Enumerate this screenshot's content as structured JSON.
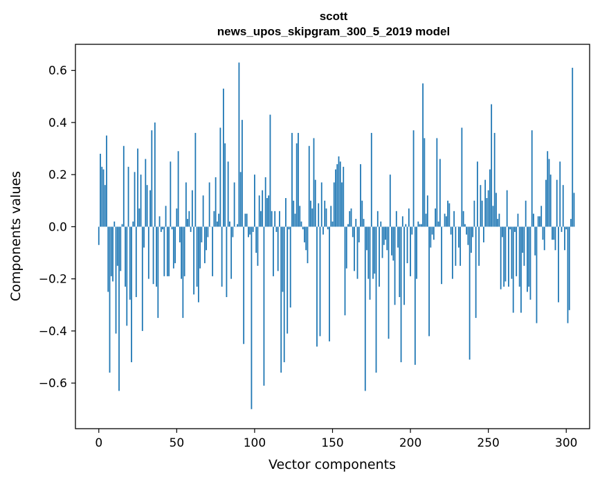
{
  "chart_data": {
    "type": "bar",
    "title_line1": "scott",
    "title_line2": "news_upos_skipgram_300_5_2019 model",
    "xlabel": "Vector components",
    "ylabel": "Components values",
    "xlim": [
      -15,
      315
    ],
    "ylim": [
      -0.775,
      0.7
    ],
    "xticks": [
      0,
      50,
      100,
      150,
      200,
      250,
      300
    ],
    "xtick_labels": [
      "0",
      "50",
      "100",
      "150",
      "200",
      "250",
      "300"
    ],
    "yticks": [
      -0.6,
      -0.4,
      -0.2,
      0.0,
      0.2,
      0.4,
      0.6
    ],
    "ytick_labels": [
      "−0.6",
      "−0.4",
      "−0.2",
      "0.0",
      "0.2",
      "0.4",
      "0.6"
    ],
    "grid": false,
    "bar_color": "#1f77b4",
    "values": [
      -0.07,
      0.28,
      0.23,
      0.22,
      0.16,
      0.35,
      -0.25,
      -0.56,
      -0.19,
      -0.21,
      0.02,
      -0.41,
      -0.15,
      -0.63,
      -0.17,
      0.01,
      0.31,
      -0.23,
      -0.38,
      0.23,
      -0.28,
      -0.52,
      0.02,
      0.21,
      -0.27,
      0.3,
      0.07,
      0.2,
      -0.4,
      -0.08,
      0.26,
      0.16,
      -0.2,
      0.14,
      0.37,
      -0.22,
      0.4,
      -0.23,
      -0.35,
      0.04,
      -0.02,
      -0.01,
      -0.19,
      0.08,
      -0.19,
      -0.19,
      0.25,
      -0.01,
      -0.16,
      -0.14,
      0.07,
      0.29,
      -0.06,
      -0.2,
      -0.35,
      -0.19,
      0.17,
      0.03,
      0.06,
      -0.02,
      0.14,
      -0.26,
      0.36,
      -0.23,
      -0.29,
      -0.16,
      -0.06,
      0.12,
      -0.14,
      -0.09,
      -0.04,
      0.17,
      0.0,
      -0.19,
      0.06,
      0.19,
      0.02,
      0.05,
      0.38,
      -0.23,
      0.53,
      0.32,
      -0.27,
      0.25,
      0.02,
      -0.2,
      -0.04,
      0.17,
      0.0,
      0.01,
      0.63,
      0.21,
      0.41,
      -0.45,
      0.05,
      0.05,
      -0.04,
      -0.03,
      -0.7,
      -0.02,
      0.2,
      -0.1,
      -0.15,
      0.12,
      0.06,
      0.14,
      -0.61,
      0.19,
      0.11,
      0.12,
      0.43,
      0.06,
      -0.19,
      0.06,
      -0.02,
      -0.17,
      0.06,
      -0.56,
      -0.25,
      -0.52,
      0.11,
      -0.41,
      -0.01,
      -0.31,
      0.36,
      0.1,
      0.05,
      0.32,
      0.36,
      0.08,
      0.02,
      -0.01,
      -0.06,
      -0.09,
      -0.14,
      0.31,
      0.1,
      0.07,
      0.34,
      0.18,
      -0.46,
      0.09,
      -0.42,
      0.17,
      -0.03,
      0.1,
      0.07,
      -0.01,
      -0.44,
      0.08,
      0.02,
      0.17,
      0.22,
      0.24,
      0.27,
      0.25,
      0.17,
      0.23,
      -0.34,
      -0.16,
      0.01,
      0.06,
      0.07,
      -0.04,
      -0.17,
      0.03,
      -0.2,
      -0.06,
      0.24,
      0.1,
      0.03,
      -0.63,
      -0.09,
      -0.2,
      -0.28,
      0.36,
      -0.2,
      -0.18,
      -0.56,
      0.06,
      -0.23,
      0.02,
      -0.12,
      -0.07,
      -0.05,
      -0.09,
      -0.43,
      0.2,
      -0.11,
      -0.13,
      -0.3,
      0.06,
      -0.08,
      -0.27,
      -0.52,
      0.04,
      -0.3,
      0.01,
      -0.14,
      0.07,
      -0.19,
      -0.03,
      0.37,
      -0.53,
      -0.2,
      0.02,
      0.01,
      0.01,
      0.55,
      0.34,
      0.05,
      0.12,
      -0.42,
      -0.08,
      -0.03,
      -0.05,
      0.07,
      0.34,
      0.02,
      0.26,
      -0.22,
      0.0,
      0.05,
      0.04,
      0.1,
      0.09,
      -0.03,
      -0.2,
      0.06,
      -0.15,
      0.0,
      -0.08,
      -0.15,
      0.38,
      0.06,
      0.01,
      -0.03,
      -0.07,
      -0.51,
      -0.1,
      -0.04,
      0.1,
      -0.35,
      0.25,
      -0.15,
      0.16,
      0.1,
      -0.06,
      0.18,
      0.11,
      0.14,
      0.22,
      0.47,
      0.08,
      0.36,
      0.13,
      0.03,
      0.05,
      -0.24,
      -0.04,
      -0.23,
      -0.21,
      0.14,
      -0.23,
      -0.01,
      -0.2,
      -0.33,
      -0.02,
      -0.19,
      0.05,
      -0.23,
      -0.33,
      -0.1,
      -0.15,
      0.1,
      -0.25,
      -0.23,
      -0.28,
      0.37,
      0.05,
      -0.11,
      -0.37,
      0.04,
      0.04,
      0.08,
      -0.05,
      -0.09,
      0.18,
      0.29,
      0.26,
      0.2,
      -0.05,
      -0.05,
      -0.09,
      0.18,
      -0.29,
      0.25,
      -0.02,
      0.16,
      -0.09,
      -0.01,
      -0.37,
      -0.32,
      0.03,
      0.61,
      0.13
    ],
    "values_note": ""
  }
}
